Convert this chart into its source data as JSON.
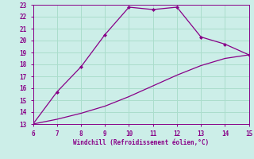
{
  "xlabel": "Windchill (Refroidissement éolien,°C)",
  "upper_x": [
    6,
    7,
    8,
    9,
    10,
    11,
    12,
    13,
    14,
    15
  ],
  "upper_y": [
    13,
    15.7,
    17.8,
    20.5,
    22.8,
    22.6,
    22.8,
    20.3,
    19.7,
    18.8
  ],
  "lower_x": [
    6,
    7,
    8,
    9,
    10,
    11,
    12,
    13,
    14,
    15
  ],
  "lower_y": [
    13,
    13.4,
    13.9,
    14.5,
    15.3,
    16.2,
    17.1,
    17.9,
    18.5,
    18.8
  ],
  "line_color": "#880088",
  "marker_color": "#880088",
  "bg_color": "#cceee8",
  "grid_color": "#aaddcc",
  "tick_color": "#880088",
  "xlim": [
    6,
    15
  ],
  "ylim": [
    13,
    23
  ],
  "xticks": [
    6,
    7,
    8,
    9,
    10,
    11,
    12,
    13,
    14,
    15
  ],
  "yticks": [
    13,
    14,
    15,
    16,
    17,
    18,
    19,
    20,
    21,
    22,
    23
  ]
}
